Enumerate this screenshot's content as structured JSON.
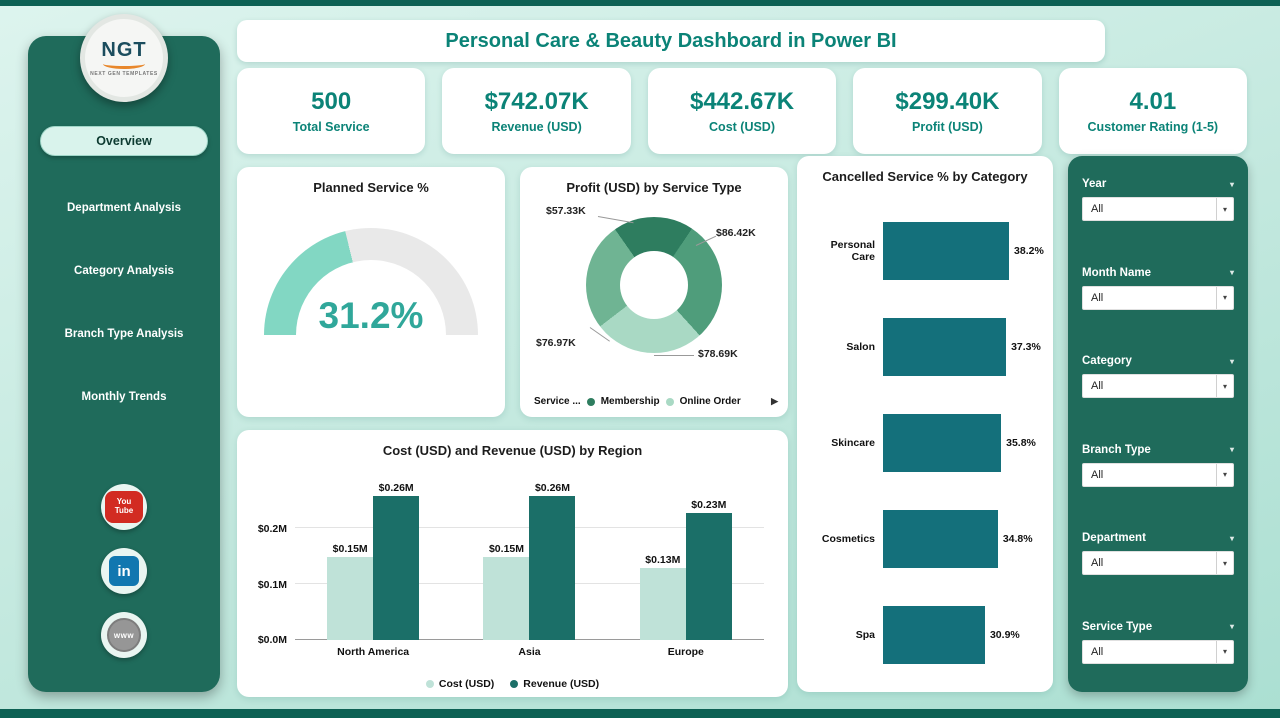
{
  "app": {
    "title": "Personal Care & Beauty Dashboard in Power BI"
  },
  "sidebar": {
    "logo": {
      "abbr": "NGT",
      "tagline": "NEXT GEN TEMPLATES"
    },
    "nav": [
      {
        "label": "Overview",
        "active": true
      },
      {
        "label": "Department Analysis"
      },
      {
        "label": "Category Analysis"
      },
      {
        "label": "Branch Type Analysis"
      },
      {
        "label": "Monthly Trends"
      }
    ],
    "social": [
      {
        "name": "youtube",
        "label": "You\nTube"
      },
      {
        "name": "linkedin",
        "label": "in"
      },
      {
        "name": "website",
        "label": "www"
      }
    ]
  },
  "kpis": [
    {
      "value": "500",
      "label": "Total Service"
    },
    {
      "value": "$742.07K",
      "label": "Revenue (USD)"
    },
    {
      "value": "$442.67K",
      "label": "Cost (USD)"
    },
    {
      "value": "$299.40K",
      "label": "Profit (USD)"
    },
    {
      "value": "4.01",
      "label": "Customer Rating (1-5)"
    }
  ],
  "filters": {
    "items": [
      {
        "label": "Year",
        "value": "All"
      },
      {
        "label": "Month Name",
        "value": "All"
      },
      {
        "label": "Category",
        "value": "All"
      },
      {
        "label": "Branch Type",
        "value": "All"
      },
      {
        "label": "Department",
        "value": "All"
      },
      {
        "label": "Service Type",
        "value": "All"
      }
    ]
  },
  "chart_data": [
    {
      "type": "gauge",
      "title": "Planned Service %",
      "value": 31.2,
      "value_label": "31.2%",
      "fill_angle_deg": 76,
      "fill_color": "#82d7c3",
      "track_color": "#e9e9e9"
    },
    {
      "type": "pie",
      "title": "Profit (USD) by Service Type",
      "legend_title": "Service ...",
      "start_angle_deg": 325,
      "segments": [
        {
          "label": "$57.33K",
          "value": 57.33,
          "color": "#2e7d5f"
        },
        {
          "label": "$86.42K",
          "value": 86.42,
          "color": "#4f9d7b"
        },
        {
          "label": "$78.69K",
          "value": 78.69,
          "color": "#a9d9c4"
        },
        {
          "label": "$76.97K",
          "value": 76.97,
          "color": "#6fb493"
        }
      ],
      "legend": [
        {
          "label": "Membership",
          "color": "#2e7d5f"
        },
        {
          "label": "Online Order",
          "color": "#a9d9c4"
        }
      ]
    },
    {
      "type": "bar",
      "orientation": "horizontal",
      "title": "Cancelled Service % by Category",
      "categories": [
        "Personal Care",
        "Salon",
        "Skincare",
        "Cosmetics",
        "Spa"
      ],
      "values": [
        38.2,
        37.3,
        35.8,
        34.8,
        30.9
      ],
      "value_labels": [
        "38.2%",
        "37.3%",
        "35.8%",
        "34.8%",
        "30.9%"
      ],
      "xmax": 40,
      "bar_color": "#14707b"
    },
    {
      "type": "bar",
      "title": "Cost (USD) and Revenue (USD) by Region",
      "categories": [
        "North America",
        "Asia",
        "Europe"
      ],
      "series": [
        {
          "name": "Cost (USD)",
          "color": "#bfe2d8",
          "values": [
            0.15,
            0.15,
            0.13
          ],
          "value_labels": [
            "$0.15M",
            "$0.15M",
            "$0.13M"
          ]
        },
        {
          "name": "Revenue (USD)",
          "color": "#1b6f68",
          "values": [
            0.26,
            0.26,
            0.23
          ],
          "value_labels": [
            "$0.26M",
            "$0.26M",
            "$0.23M"
          ]
        }
      ],
      "y_ticks": [
        "$0.0M",
        "$0.1M",
        "$0.2M"
      ],
      "ymax": 0.3
    }
  ]
}
